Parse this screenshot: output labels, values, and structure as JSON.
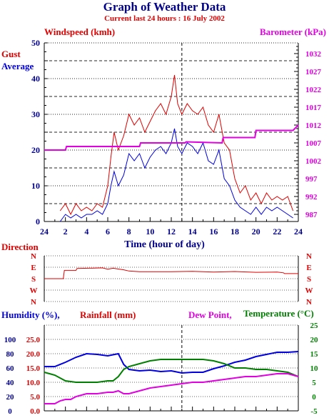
{
  "header": {
    "title": "Graph of Weather Data",
    "subtitle": "Current last 24 hours : 16 July 2002"
  },
  "colors": {
    "navy": "#00008b",
    "red": "#e00000",
    "magenta": "#e000e0",
    "green": "#008000",
    "blue": "#0000e0",
    "grid": "#000000"
  },
  "chart_data": [
    {
      "type": "line",
      "labels": {
        "left_top": "Windspeed (kmh)",
        "right_top": "Barometer (kPa)",
        "gust": "Gust",
        "average": "Average",
        "xlabel": "Time (hour of day)"
      },
      "x_ticks": [
        "24",
        "2",
        "4",
        "6",
        "8",
        "10",
        "12",
        "14",
        "16",
        "18",
        "20",
        "22",
        "24"
      ],
      "y_left_ticks": [
        "0",
        "10",
        "20",
        "30",
        "40",
        "50"
      ],
      "y_right_ticks": [
        "987",
        "992",
        "997",
        "1002",
        "1007",
        "1012",
        "1017",
        "1022",
        "1027",
        "1032"
      ],
      "ylim_left": [
        0,
        50
      ],
      "ylim_right": [
        985,
        1035
      ],
      "series": [
        {
          "name": "Gust",
          "color": "#e00000",
          "x": [
            1.5,
            2.0,
            2.5,
            3.0,
            3.5,
            4.0,
            4.5,
            5.0,
            5.5,
            6.0,
            6.3,
            6.6,
            7.0,
            7.5,
            8.0,
            8.5,
            9.0,
            9.5,
            10.0,
            10.5,
            11.0,
            11.5,
            12.0,
            12.3,
            12.6,
            13.0,
            13.5,
            14.0,
            14.5,
            15.0,
            15.5,
            16.0,
            16.5,
            17.0,
            17.5,
            18.0,
            18.5,
            19.0,
            19.5,
            20.0,
            20.5,
            21.0,
            21.5,
            22.0,
            22.5,
            23.0,
            23.5
          ],
          "y": [
            3,
            5,
            2,
            5,
            3,
            4,
            3,
            5,
            4,
            10,
            18,
            25,
            20,
            24,
            30,
            27,
            29,
            25,
            28,
            31,
            33,
            30,
            35,
            41,
            33,
            30,
            33,
            31,
            30,
            32,
            27,
            25,
            30,
            22,
            20,
            12,
            8,
            10,
            6,
            8,
            5,
            8,
            6,
            7,
            6,
            7,
            3
          ]
        },
        {
          "name": "Average",
          "color": "#0000e0",
          "x": [
            1.5,
            2.0,
            2.5,
            3.0,
            3.5,
            4.0,
            4.5,
            5.0,
            5.5,
            6.0,
            6.3,
            6.6,
            7.0,
            7.5,
            8.0,
            8.5,
            9.0,
            9.5,
            10.0,
            10.5,
            11.0,
            11.5,
            12.0,
            12.3,
            12.6,
            13.0,
            13.5,
            14.0,
            14.5,
            15.0,
            15.5,
            16.0,
            16.5,
            17.0,
            17.5,
            18.0,
            18.5,
            19.0,
            19.5,
            20.0,
            20.5,
            21.0,
            21.5,
            22.0,
            22.5,
            23.0,
            23.5
          ],
          "y": [
            0,
            2,
            1,
            2,
            1,
            2,
            2,
            3,
            2,
            5,
            10,
            14,
            10,
            13,
            19,
            17,
            19,
            15,
            18,
            20,
            21,
            19,
            22,
            26,
            21,
            19,
            22,
            21,
            19,
            22,
            17,
            16,
            20,
            12,
            10,
            6,
            4,
            3,
            2,
            4,
            2,
            4,
            3,
            4,
            3,
            2,
            1
          ]
        },
        {
          "name": "Barometer",
          "color": "#e000e0",
          "x": [
            0,
            2.0,
            2.1,
            9.0,
            9.1,
            12.0,
            13.3,
            13.4,
            16.8,
            16.9,
            19.9,
            20.0,
            23.5,
            24
          ],
          "y": [
            1005,
            1005,
            1006,
            1006,
            1007,
            1007,
            1007,
            1007.3,
            1007,
            1008.5,
            1008.5,
            1010.5,
            1010.5,
            1012
          ]
        }
      ]
    },
    {
      "type": "line",
      "labels": {
        "left_top": "Direction"
      },
      "y_left_ticks": [
        "N",
        "W",
        "S",
        "E",
        "N"
      ],
      "y_right_ticks": [
        "N",
        "W",
        "S",
        "E",
        "N"
      ],
      "series": [
        {
          "name": "Direction",
          "color": "#e00000",
          "x": [
            0,
            1.8,
            1.9,
            3.0,
            3.1,
            5.5,
            6.0,
            6.5,
            7.5,
            8.0,
            9.0,
            12.0,
            14.0,
            16.0,
            18.0,
            20.0,
            22.0,
            22.6,
            22.7,
            24
          ],
          "y": [
            180,
            180,
            245,
            245,
            260,
            265,
            255,
            262,
            250,
            240,
            235,
            235,
            238,
            232,
            236,
            230,
            232,
            226,
            220,
            220
          ]
        }
      ]
    },
    {
      "type": "line",
      "labels": {
        "humidity": "Humidity (%),",
        "rainfall": "Rainfall (mm)",
        "dewpoint": "Dew Point,",
        "temperature": "Temperature (°C)"
      },
      "y_humidity_ticks": [
        "0",
        "20",
        "40",
        "60",
        "80",
        "100"
      ],
      "y_rainfall_ticks": [
        "0.0",
        "5.0",
        "10.0",
        "15.0",
        "20.0",
        "25.0"
      ],
      "y_temp_ticks": [
        "-5",
        "0",
        "5",
        "10",
        "15",
        "20",
        "25"
      ],
      "ylim_humidity": [
        0,
        120
      ],
      "ylim_temp": [
        -5,
        25
      ],
      "series": [
        {
          "name": "Humidity",
          "color": "#0000e0",
          "x": [
            0,
            1,
            2,
            3,
            4,
            5,
            6,
            7,
            7.5,
            8,
            9,
            10,
            11,
            12,
            13,
            14,
            15,
            16,
            17,
            18,
            19,
            20,
            21,
            22,
            23,
            24
          ],
          "y": [
            62,
            62,
            68,
            75,
            80,
            79,
            77,
            80,
            65,
            58,
            56,
            57,
            55,
            56,
            53,
            54,
            54,
            59,
            63,
            68,
            71,
            76,
            79,
            82,
            82,
            83
          ]
        },
        {
          "name": "Temperature",
          "color": "#008000",
          "x": [
            0,
            0.5,
            1,
            2,
            3,
            4,
            5,
            6,
            6.5,
            7,
            7.5,
            8,
            9,
            10,
            11,
            12,
            13,
            14,
            15,
            16,
            17,
            18,
            19,
            20,
            21,
            22,
            23,
            24
          ],
          "y": [
            8.5,
            8,
            7.5,
            5.5,
            5,
            5,
            5,
            5.5,
            5.5,
            7,
            9.5,
            10.5,
            11.5,
            12.5,
            13,
            13,
            13,
            13,
            13,
            12.5,
            11.5,
            10,
            10,
            9.5,
            9.5,
            9,
            8.5,
            7
          ]
        },
        {
          "name": "Dew Point",
          "color": "#e000e0",
          "x": [
            0,
            1,
            1.5,
            2,
            2.5,
            3,
            4,
            5,
            6,
            6.5,
            7,
            7.5,
            8,
            9,
            10,
            11,
            12,
            13,
            14,
            15,
            16,
            17,
            18,
            19,
            20,
            21,
            22,
            23,
            24
          ],
          "y": [
            -2.5,
            -2.5,
            -1.5,
            -1,
            -1,
            0,
            1,
            1,
            1.5,
            1.5,
            2,
            1,
            1,
            2,
            3,
            3.5,
            4,
            4.5,
            5,
            5,
            5.5,
            6,
            6.5,
            7,
            7,
            7.5,
            8,
            8,
            7
          ]
        },
        {
          "name": "Rainfall",
          "color": "#e00000",
          "x": [],
          "y": []
        }
      ]
    }
  ]
}
